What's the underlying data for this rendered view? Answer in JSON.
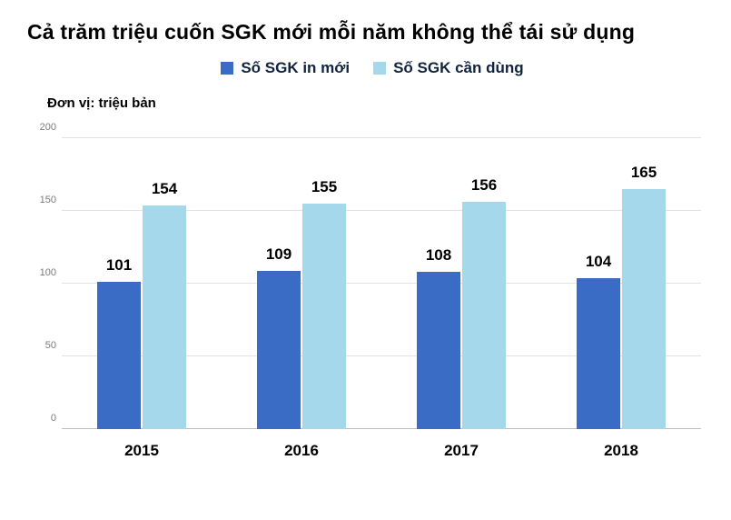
{
  "title": "Cả trăm triệu cuốn SGK mới mỗi năm không thể tái sử dụng",
  "unit_label": "Đơn vị: triệu bản",
  "colors": {
    "series_new": "#3a6bc5",
    "series_needed": "#a5d8ea",
    "gridline": "#e2e2e2",
    "axis_text": "#7a7a7a"
  },
  "legend": [
    {
      "label": "Số SGK in mới",
      "color": "#3a6bc5"
    },
    {
      "label": "Số SGK cần dùng",
      "color": "#a5d8ea"
    }
  ],
  "chart_data": {
    "type": "bar",
    "title": "Cả trăm triệu cuốn SGK mới mỗi năm không thể tái sử dụng",
    "categories": [
      "2015",
      "2016",
      "2017",
      "2018"
    ],
    "series": [
      {
        "name": "Số SGK in mới",
        "color": "#3a6bc5",
        "values": [
          101,
          109,
          108,
          104
        ]
      },
      {
        "name": "Số SGK cần dùng",
        "color": "#a5d8ea",
        "values": [
          154,
          155,
          156,
          165
        ]
      }
    ],
    "xlabel": "",
    "ylabel": "triệu bản",
    "ylim": [
      0,
      200
    ],
    "yticks": [
      0,
      50,
      100,
      150,
      200
    ],
    "grid": true,
    "legend_position": "top",
    "value_labels": true
  }
}
